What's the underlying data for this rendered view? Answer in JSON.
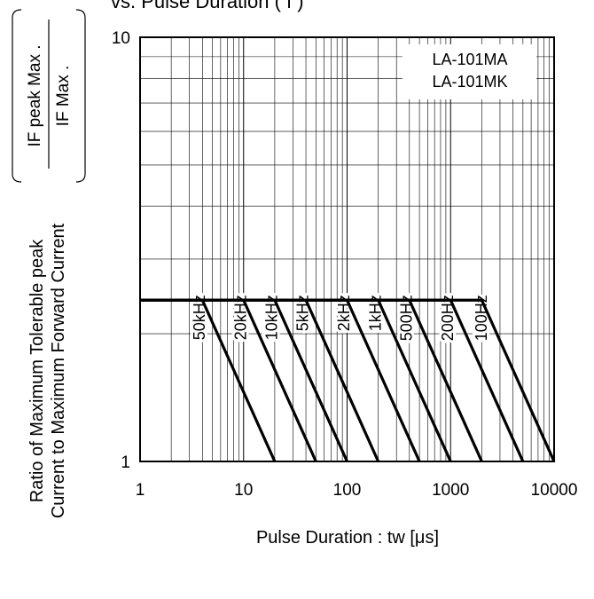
{
  "chart_data": {
    "type": "line",
    "title": "vs. Pulse Duration ( f )",
    "xlabel": "Pulse Duration : tw [μs]",
    "ylabel_line1": "Ratio of Maximum Tolerable peak",
    "ylabel_line2": "Current to Maximum Forward Current",
    "ylabel_formula_num": "IF peak Max .",
    "ylabel_formula_den": "IF Max .",
    "x_scale": "log",
    "y_scale": "log",
    "xlim": [
      1,
      10000
    ],
    "ylim": [
      1,
      10
    ],
    "x_tick_values": [
      1,
      10,
      100,
      1000,
      10000
    ],
    "x_tick_labels": [
      "1",
      "10",
      "100",
      "1000",
      "10000"
    ],
    "y_tick_values": [
      1,
      10
    ],
    "y_tick_labels": [
      "1",
      "10"
    ],
    "grid": true,
    "legend": [
      "LA-101MA",
      "LA-101MK"
    ],
    "legend_position": "top-right",
    "plateau_ratio": 2.4,
    "series": [
      {
        "name": "50kHz",
        "x": [
          1,
          4,
          20
        ],
        "y": [
          2.4,
          2.4,
          1
        ]
      },
      {
        "name": "20kHz",
        "x": [
          1,
          10,
          50
        ],
        "y": [
          2.4,
          2.4,
          1
        ]
      },
      {
        "name": "10kHz",
        "x": [
          1,
          20,
          100
        ],
        "y": [
          2.4,
          2.4,
          1
        ]
      },
      {
        "name": "5kHz",
        "x": [
          1,
          40,
          200
        ],
        "y": [
          2.4,
          2.4,
          1
        ]
      },
      {
        "name": "2kHz",
        "x": [
          1,
          100,
          500
        ],
        "y": [
          2.4,
          2.4,
          1
        ]
      },
      {
        "name": "1kHz",
        "x": [
          1,
          200,
          1000
        ],
        "y": [
          2.4,
          2.4,
          1
        ]
      },
      {
        "name": "500Hz",
        "x": [
          1,
          400,
          2000
        ],
        "y": [
          2.4,
          2.4,
          1
        ]
      },
      {
        "name": "200Hz",
        "x": [
          1,
          1000,
          5000
        ],
        "y": [
          2.4,
          2.4,
          1
        ]
      },
      {
        "name": "100Hz",
        "x": [
          1,
          2000,
          10000
        ],
        "y": [
          2.4,
          2.4,
          1
        ]
      }
    ],
    "freq_label_x": [
      3.2,
      8,
      16,
      32,
      80,
      160,
      320,
      800,
      1700
    ]
  }
}
